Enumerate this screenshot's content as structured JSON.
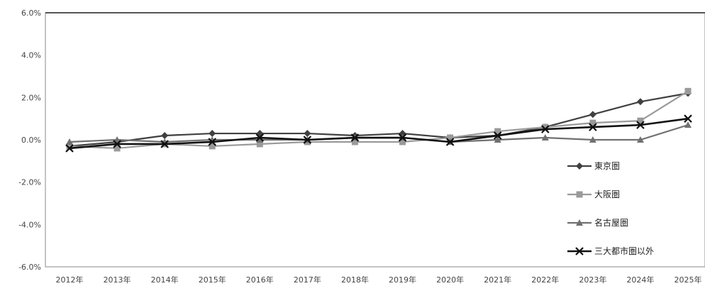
{
  "chart_data": {
    "type": "line",
    "title": "",
    "xlabel": "",
    "ylabel": "",
    "categories": [
      "2012年",
      "2013年",
      "2014年",
      "2015年",
      "2016年",
      "2017年",
      "2018年",
      "2019年",
      "2020年",
      "2021年",
      "2022年",
      "2023年",
      "2024年",
      "2025年"
    ],
    "ylim": [
      -6.0,
      6.0
    ],
    "y_ticks": [
      "6.0%",
      "4.0%",
      "2.0%",
      "0.0%",
      "-2.0%",
      "-4.0%",
      "-6.0%"
    ],
    "grid": false,
    "legend": "right",
    "series": [
      {
        "name": "東京圏",
        "marker": "diamond",
        "color": "#404040",
        "values": [
          -0.3,
          -0.1,
          0.2,
          0.3,
          0.3,
          0.3,
          0.2,
          0.3,
          0.1,
          0.2,
          0.6,
          1.2,
          1.8,
          2.2
        ]
      },
      {
        "name": "大阪圏",
        "marker": "square",
        "color": "#9a9a9a",
        "values": [
          -0.3,
          -0.4,
          -0.2,
          -0.3,
          -0.2,
          -0.1,
          -0.1,
          -0.1,
          0.1,
          0.4,
          0.6,
          0.8,
          0.9,
          2.3
        ]
      },
      {
        "name": "名古屋圏",
        "marker": "triangle",
        "color": "#707070",
        "values": [
          -0.1,
          0.0,
          -0.1,
          0.0,
          0.0,
          0.0,
          0.1,
          0.1,
          -0.1,
          0.0,
          0.1,
          0.0,
          0.0,
          0.7
        ]
      },
      {
        "name": "三大都市圏以外",
        "marker": "x",
        "color": "#111111",
        "values": [
          -0.4,
          -0.2,
          -0.2,
          -0.1,
          0.1,
          0.0,
          0.1,
          0.1,
          -0.1,
          0.2,
          0.5,
          0.6,
          0.7,
          1.0
        ]
      }
    ]
  }
}
